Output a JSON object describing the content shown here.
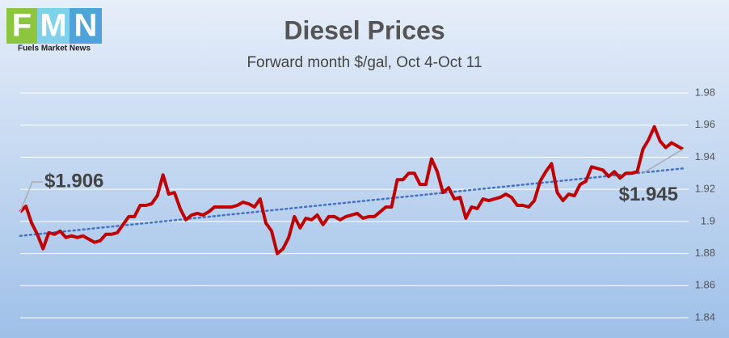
{
  "chart_data": {
    "type": "line",
    "title": "Diesel Prices",
    "subtitle": "Forward month $/gal, Oct 4-Oct 11",
    "logo": {
      "letters": [
        "F",
        "M",
        "N"
      ],
      "tagline": "Fuels Market News"
    },
    "values": [
      1.906,
      1.9095,
      1.899,
      1.892,
      1.883,
      1.893,
      1.892,
      1.894,
      1.89,
      1.891,
      1.89,
      1.891,
      1.889,
      1.887,
      1.888,
      1.892,
      1.892,
      1.893,
      1.898,
      1.903,
      1.903,
      1.91,
      1.91,
      1.911,
      1.916,
      1.929,
      1.917,
      1.918,
      1.908,
      1.901,
      1.904,
      1.905,
      1.904,
      1.906,
      1.909,
      1.909,
      1.909,
      1.909,
      1.91,
      1.912,
      1.911,
      1.909,
      1.914,
      1.899,
      1.894,
      1.88,
      1.883,
      1.89,
      1.903,
      1.896,
      1.902,
      1.901,
      1.904,
      1.898,
      1.903,
      1.903,
      1.901,
      1.903,
      1.904,
      1.905,
      1.902,
      1.903,
      1.903,
      1.906,
      1.909,
      1.909,
      1.926,
      1.926,
      1.93,
      1.93,
      1.923,
      1.923,
      1.939,
      1.931,
      1.918,
      1.921,
      1.914,
      1.915,
      1.902,
      1.909,
      1.908,
      1.914,
      1.913,
      1.914,
      1.915,
      1.917,
      1.915,
      1.91,
      1.91,
      1.909,
      1.913,
      1.925,
      1.931,
      1.936,
      1.918,
      1.913,
      1.917,
      1.916,
      1.923,
      1.925,
      1.934,
      1.933,
      1.932,
      1.928,
      1.931,
      1.927,
      1.93,
      1.93,
      1.931,
      1.945,
      1.951,
      1.959,
      1.95,
      1.946,
      1.949,
      1.947,
      1.945
    ],
    "color": "#c00000",
    "trendline": {
      "values": [
        1.891,
        1.933
      ],
      "color": "#4472c4"
    },
    "annotations": [
      "$1.906",
      "$1.945"
    ],
    "ylim": [
      1.84,
      1.98
    ],
    "yticks": [
      1.84,
      1.86,
      1.88,
      1.9,
      1.92,
      1.94,
      1.96,
      1.98
    ],
    "grid": true
  }
}
